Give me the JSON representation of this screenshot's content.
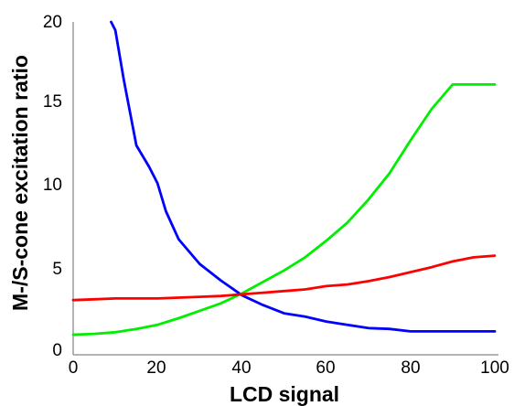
{
  "chart_data": {
    "type": "line",
    "title": "",
    "xlabel": "LCD signal",
    "ylabel": "M-/S-cone excitation ratio",
    "xlim": [
      0,
      100
    ],
    "ylim": [
      0,
      20
    ],
    "xticks": [
      0,
      20,
      40,
      60,
      80,
      100
    ],
    "yticks": [
      0,
      5,
      10,
      15,
      20
    ],
    "x_tick_labels": [
      "0",
      "20",
      "40",
      "60",
      "80",
      "100"
    ],
    "y_tick_labels": [
      "0",
      "5",
      "10",
      "15",
      "20"
    ],
    "grid": false,
    "legend": "none",
    "series": [
      {
        "color": "#0000ff",
        "x": [
          9,
          10,
          12,
          15,
          18,
          20,
          22,
          25,
          30,
          35,
          40,
          45,
          50,
          55,
          60,
          65,
          70,
          75,
          80,
          85,
          90,
          95,
          100
        ],
        "y": [
          20,
          19.5,
          16.5,
          12.5,
          11.2,
          10.2,
          8.5,
          6.8,
          5.3,
          4.3,
          3.4,
          2.8,
          2.3,
          2.1,
          1.8,
          1.6,
          1.4,
          1.35,
          1.2,
          1.2,
          1.2,
          1.2,
          1.2
        ]
      },
      {
        "color": "#00ee00",
        "x": [
          0,
          5,
          10,
          15,
          20,
          25,
          30,
          35,
          40,
          45,
          50,
          55,
          60,
          65,
          70,
          75,
          80,
          85,
          90,
          95,
          100
        ],
        "y": [
          1.0,
          1.05,
          1.15,
          1.35,
          1.6,
          2.0,
          2.45,
          2.9,
          3.5,
          4.2,
          4.9,
          5.7,
          6.7,
          7.8,
          9.2,
          10.8,
          12.8,
          14.7,
          16.2,
          16.2,
          16.2
        ]
      },
      {
        "color": "#ff0000",
        "x": [
          0,
          5,
          10,
          15,
          20,
          25,
          30,
          35,
          40,
          45,
          50,
          55,
          60,
          65,
          70,
          75,
          80,
          85,
          90,
          95,
          100
        ],
        "y": [
          3.1,
          3.15,
          3.2,
          3.2,
          3.2,
          3.25,
          3.3,
          3.35,
          3.45,
          3.55,
          3.65,
          3.75,
          3.95,
          4.05,
          4.25,
          4.5,
          4.8,
          5.1,
          5.45,
          5.7,
          5.8
        ]
      }
    ]
  }
}
